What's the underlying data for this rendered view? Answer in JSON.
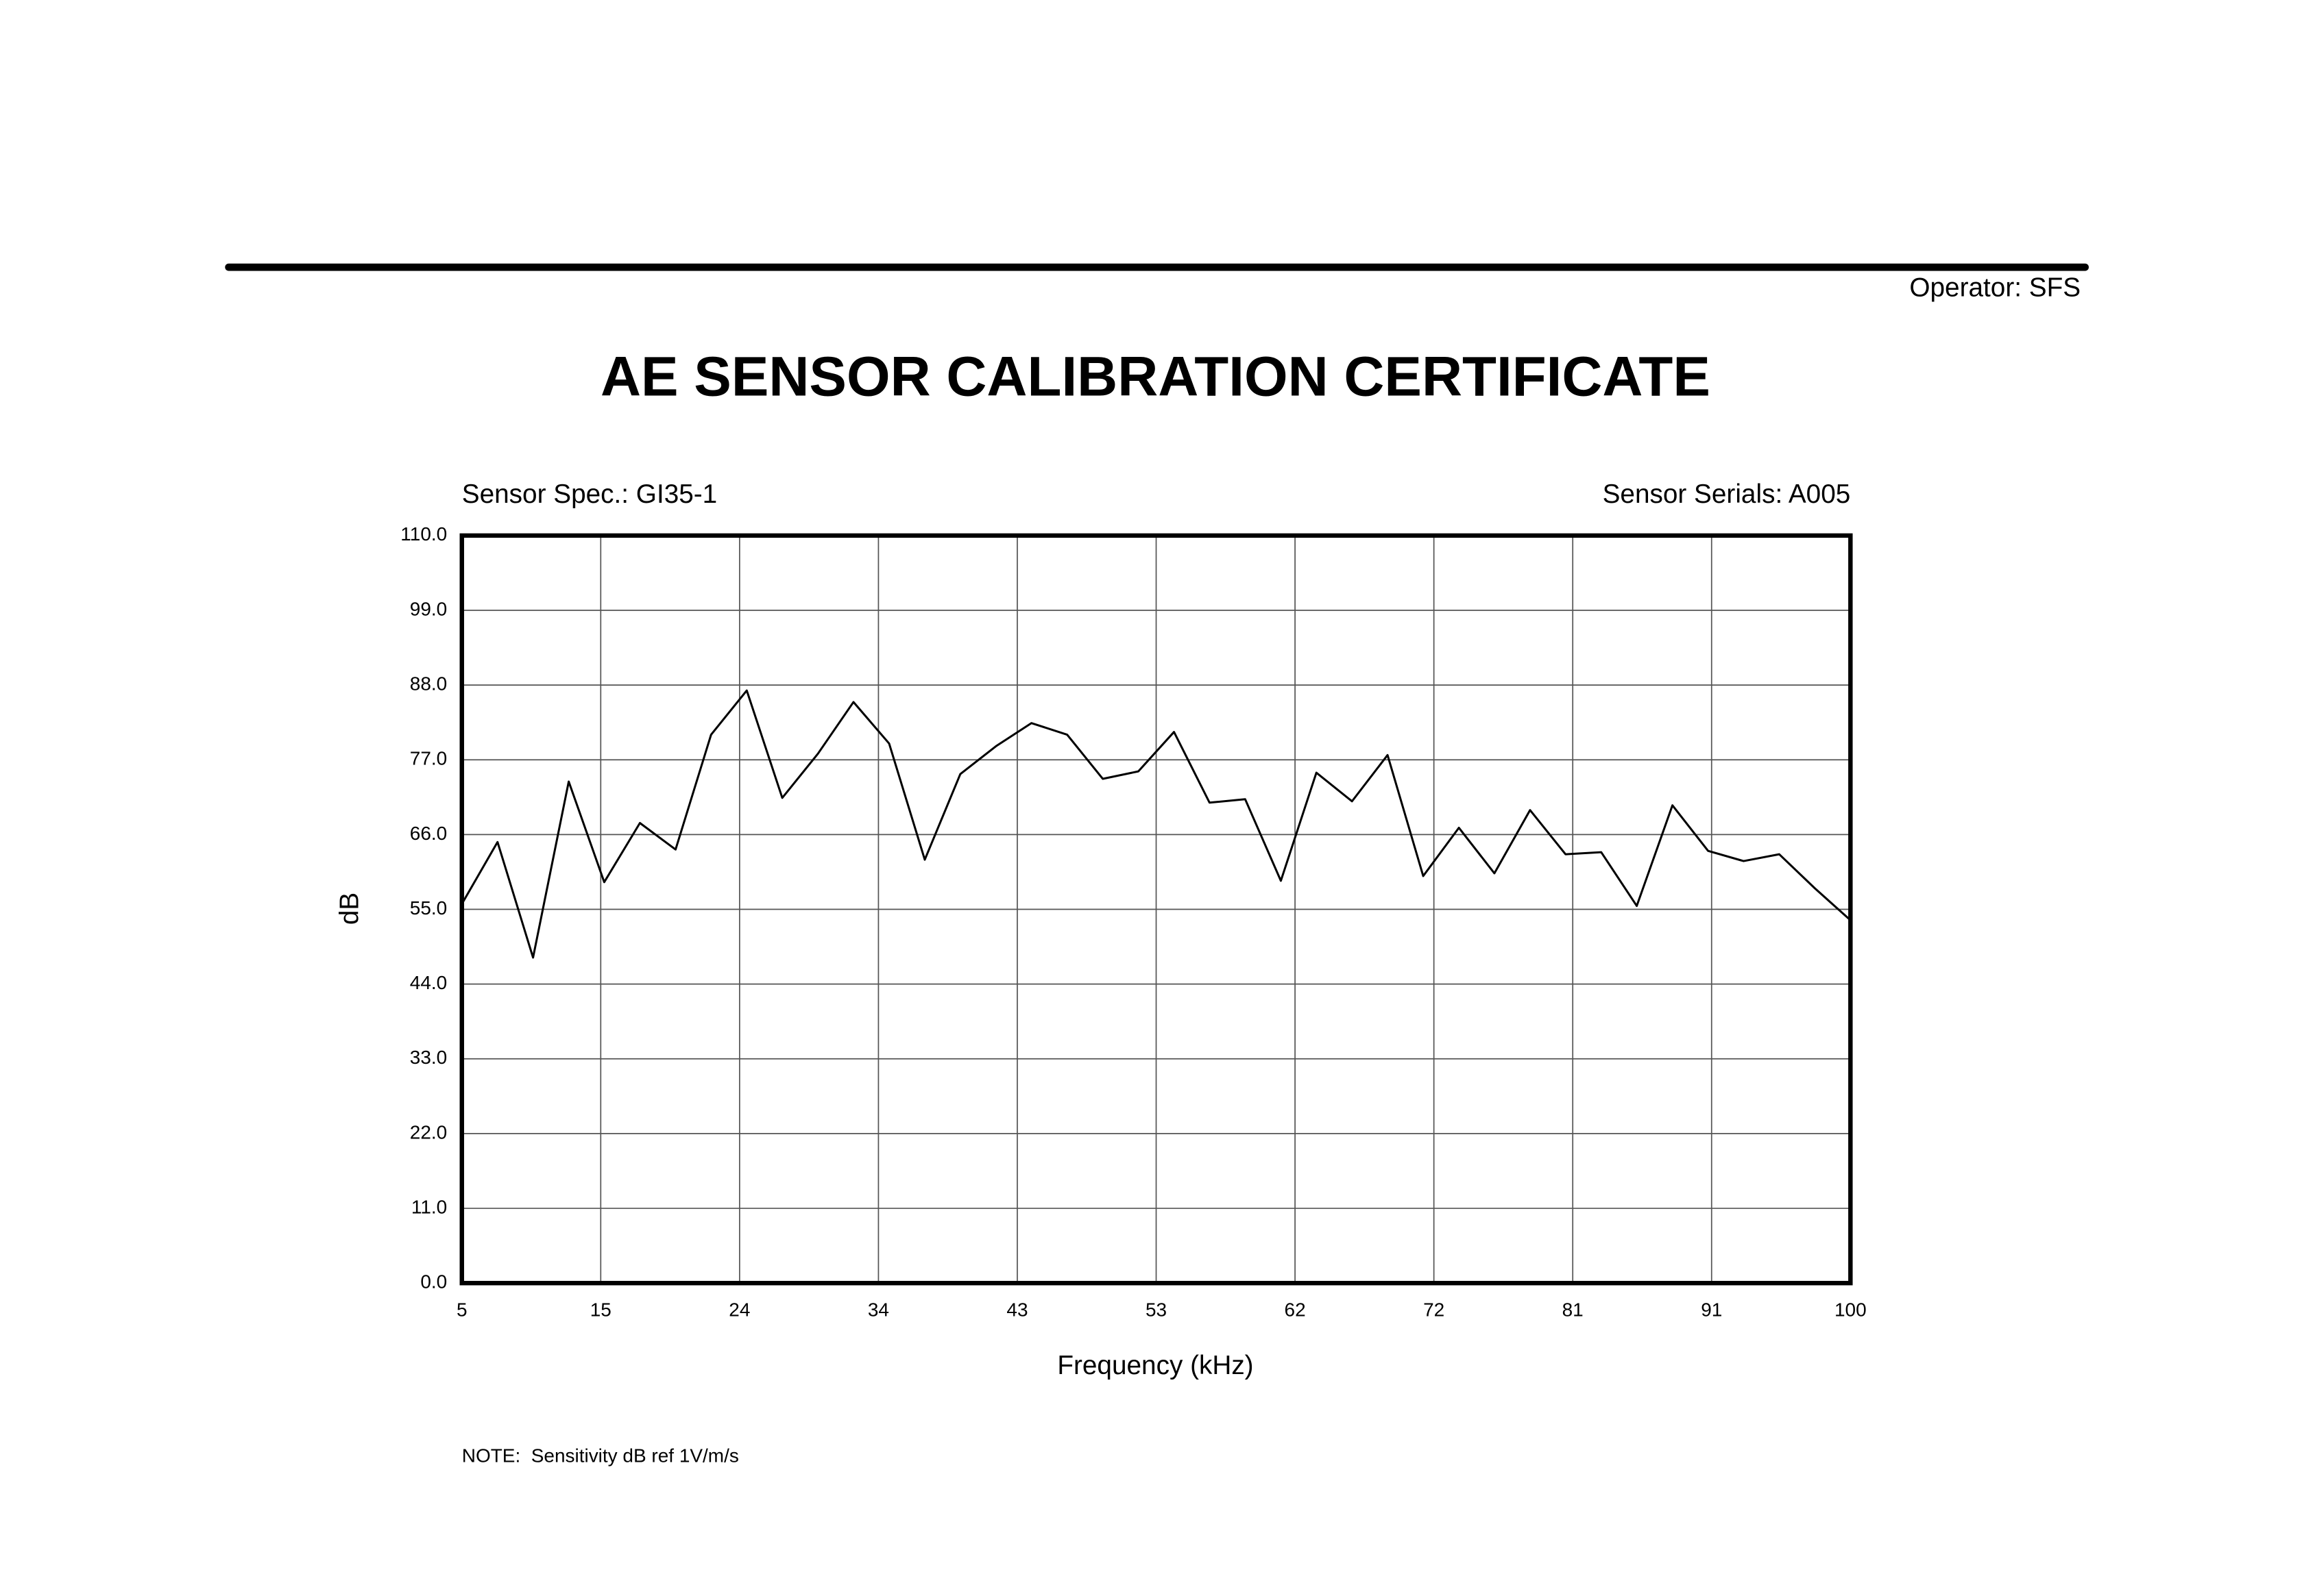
{
  "header": {
    "operator": "Operator: SFS"
  },
  "chart_data": {
    "type": "line",
    "title": "AE SENSOR CALIBRATION CERTIFICATE",
    "subtitle_left": "Sensor Spec.: GI35-1",
    "subtitle_right": "Sensor Serials: A005",
    "x_label": "Frequency (kHz)",
    "y_label": "dB",
    "note": "NOTE:  Sensitivity dB ref 1V/m/s",
    "grid": true,
    "xlim": [
      5,
      100
    ],
    "ylim": [
      0,
      110
    ],
    "xticks": [
      5,
      {
        "value": 14.5,
        "label": "15"
      },
      24,
      {
        "value": 33.5,
        "label": "34"
      },
      43,
      {
        "value": 52.5,
        "label": "53"
      },
      62,
      {
        "value": 71.5,
        "label": "72"
      },
      81,
      {
        "value": 90.5,
        "label": "91"
      },
      100
    ],
    "yticks": [
      {
        "value": 0,
        "label": "0.0"
      },
      {
        "value": 11,
        "label": "11.0"
      },
      {
        "value": 22,
        "label": "22.0"
      },
      {
        "value": 33,
        "label": "33.0"
      },
      {
        "value": 44,
        "label": "44.0"
      },
      {
        "value": 55,
        "label": "55.0"
      },
      {
        "value": 66,
        "label": "66.0"
      },
      {
        "value": 77,
        "label": "77.0"
      },
      {
        "value": 88,
        "label": "88.0"
      },
      {
        "value": 99,
        "label": "99.0"
      },
      {
        "value": 110,
        "label": "110.0"
      }
    ],
    "x": [
      5,
      7.44,
      9.87,
      12.31,
      14.74,
      17.18,
      19.62,
      22.05,
      24.49,
      26.92,
      29.36,
      31.79,
      34.23,
      36.67,
      39.1,
      41.54,
      43.97,
      46.41,
      48.85,
      51.28,
      53.72,
      56.15,
      58.59,
      61.03,
      63.46,
      65.9,
      68.33,
      70.77,
      73.21,
      75.64,
      78.08,
      80.51,
      82.95,
      85.38,
      87.82,
      90.26,
      92.69,
      95.13,
      97.56,
      100
    ],
    "series": [
      {
        "name": "Sensitivity",
        "color": "#000000",
        "values": [
          55.8,
          64.9,
          47.9,
          73.8,
          59.0,
          67.7,
          63.8,
          80.7,
          87.2,
          71.4,
          77.9,
          85.5,
          79.4,
          62.3,
          74.9,
          79.0,
          82.4,
          80.7,
          74.2,
          75.3,
          81.1,
          70.7,
          71.2,
          59.2,
          75.1,
          70.9,
          77.7,
          59.9,
          67.0,
          60.3,
          69.6,
          63.1,
          63.4,
          55.5,
          70.3,
          63.6,
          62.1,
          63.1,
          58.1,
          53.4
        ]
      }
    ]
  }
}
